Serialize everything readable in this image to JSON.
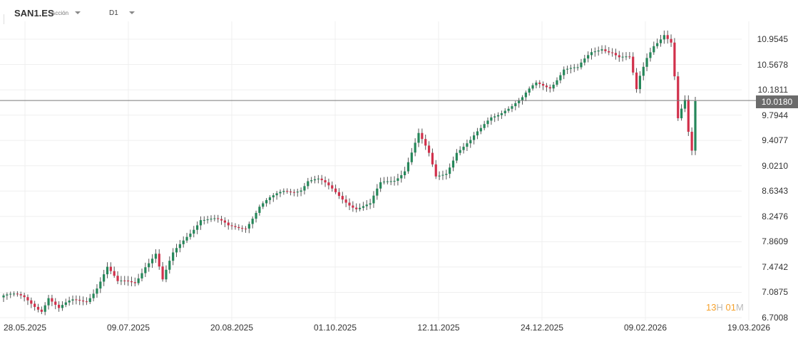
{
  "header": {
    "symbol": "SAN1.ES",
    "instrument_type": "Acción",
    "timeframe": "D1"
  },
  "current_price": "10.0180",
  "timer": {
    "hours": "13",
    "h_unit": "H",
    "minutes": "01",
    "m_unit": "M"
  },
  "colors": {
    "up": "#26875a",
    "down": "#d1304b",
    "grid": "#efefef",
    "price_line": "#7a7a7a"
  },
  "chart_data": {
    "type": "candlestick",
    "price_ticks": [
      "10.9545",
      "10.5678",
      "10.1811",
      "9.7944",
      "9.4077",
      "9.0210",
      "8.6343",
      "8.2476",
      "7.8609",
      "7.4742",
      "7.0875",
      "6.7008"
    ],
    "date_ticks": [
      "28.05.2025",
      "09.07.2025",
      "20.08.2025",
      "01.10.2025",
      "12.11.2025",
      "24.12.2025",
      "09.02.2026",
      "19.03.2026"
    ],
    "ylim": [
      6.7008,
      10.9545
    ],
    "close_keypoints": [
      [
        0,
        7.04
      ],
      [
        6,
        6.98
      ],
      [
        11,
        6.85
      ],
      [
        13,
        7.04
      ],
      [
        16,
        6.82
      ],
      [
        20,
        6.93
      ],
      [
        24,
        6.98
      ],
      [
        27,
        7.2
      ],
      [
        30,
        7.47
      ],
      [
        33,
        7.2
      ],
      [
        38,
        7.25
      ],
      [
        41,
        7.53
      ],
      [
        44,
        7.69
      ],
      [
        46,
        7.25
      ],
      [
        49,
        7.64
      ],
      [
        53,
        7.96
      ],
      [
        57,
        8.24
      ],
      [
        61,
        8.18
      ],
      [
        65,
        8.07
      ],
      [
        70,
        8.12
      ],
      [
        74,
        8.4
      ],
      [
        78,
        8.51
      ],
      [
        81,
        8.62
      ],
      [
        86,
        8.7
      ],
      [
        88,
        8.81
      ],
      [
        91,
        8.78
      ],
      [
        94,
        8.67
      ],
      [
        99,
        8.51
      ],
      [
        102,
        8.4
      ],
      [
        106,
        8.4
      ],
      [
        109,
        8.72
      ],
      [
        113,
        8.83
      ],
      [
        116,
        8.99
      ],
      [
        120,
        9.49
      ],
      [
        123,
        9.16
      ],
      [
        125,
        8.83
      ],
      [
        128,
        8.94
      ],
      [
        131,
        9.27
      ],
      [
        135,
        9.38
      ],
      [
        138,
        9.54
      ],
      [
        141,
        9.76
      ],
      [
        145,
        9.92
      ],
      [
        150,
        10.03
      ],
      [
        154,
        10.25
      ],
      [
        158,
        10.25
      ],
      [
        162,
        10.52
      ],
      [
        166,
        10.47
      ],
      [
        170,
        10.74
      ],
      [
        173,
        10.85
      ],
      [
        176,
        10.79
      ],
      [
        178,
        10.68
      ],
      [
        181,
        10.63
      ],
      [
        183,
        10.14
      ],
      [
        184,
        10.36
      ],
      [
        186,
        10.68
      ],
      [
        188,
        10.9
      ],
      [
        191,
        11.06
      ],
      [
        193,
        10.9
      ],
      [
        194,
        10.36
      ],
      [
        195,
        9.7
      ],
      [
        197,
        9.97
      ],
      [
        198,
        9.49
      ],
      [
        199,
        9.22
      ],
      [
        200,
        10.0
      ]
    ]
  }
}
